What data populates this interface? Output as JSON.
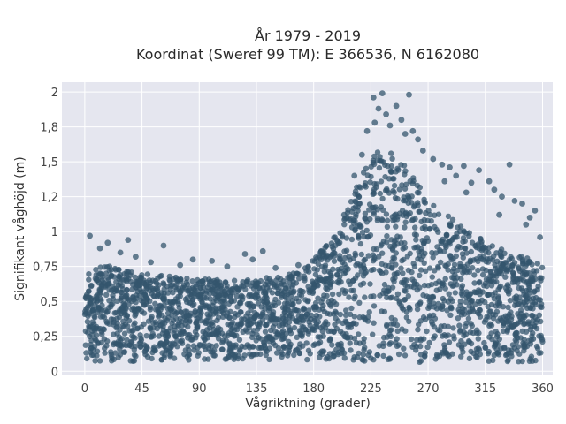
{
  "chart_data": {
    "type": "scatter",
    "title_lines": [
      "År 1979 - 2019",
      "Koordinat (Sweref 99 TM): E 366536, N 6162080"
    ],
    "xlabel": "Vågriktning (grader)",
    "ylabel": "Signifikant våghöjd (m)",
    "xlim": [
      -18,
      368
    ],
    "ylim": [
      -0.03,
      2.07
    ],
    "xticks": [
      0,
      45,
      90,
      135,
      180,
      225,
      270,
      315,
      360
    ],
    "xtick_labels": [
      "0",
      "45",
      "90",
      "135",
      "180",
      "225",
      "270",
      "315",
      "360"
    ],
    "yticks": [
      0,
      0.25,
      0.5,
      0.75,
      1,
      1.25,
      1.5,
      1.75,
      2
    ],
    "ytick_labels": [
      "0",
      "0,25",
      "0,5",
      "0,75",
      "1",
      "1,2",
      "1,5",
      "1,8",
      "2"
    ],
    "grid": true,
    "colors": {
      "marker": "#34566e",
      "plot_bg": "#e5e6ef",
      "grid": "#ffffff"
    },
    "envelope": [
      {
        "x": 0,
        "ymin": 0.07,
        "ymax": 0.72
      },
      {
        "x": 20,
        "ymin": 0.07,
        "ymax": 0.76
      },
      {
        "x": 45,
        "ymin": 0.07,
        "ymax": 0.7
      },
      {
        "x": 90,
        "ymin": 0.08,
        "ymax": 0.66
      },
      {
        "x": 135,
        "ymin": 0.08,
        "ymax": 0.66
      },
      {
        "x": 160,
        "ymin": 0.08,
        "ymax": 0.69
      },
      {
        "x": 180,
        "ymin": 0.08,
        "ymax": 0.8
      },
      {
        "x": 200,
        "ymin": 0.08,
        "ymax": 1.0
      },
      {
        "x": 215,
        "ymin": 0.07,
        "ymax": 1.38
      },
      {
        "x": 232,
        "ymin": 0.07,
        "ymax": 1.6
      },
      {
        "x": 250,
        "ymin": 0.07,
        "ymax": 1.52
      },
      {
        "x": 270,
        "ymin": 0.06,
        "ymax": 1.22
      },
      {
        "x": 295,
        "ymin": 0.06,
        "ymax": 1.05
      },
      {
        "x": 320,
        "ymin": 0.06,
        "ymax": 0.9
      },
      {
        "x": 340,
        "ymin": 0.06,
        "ymax": 0.84
      },
      {
        "x": 360,
        "ymin": 0.07,
        "ymax": 0.78
      }
    ],
    "outliers": [
      {
        "x": 4,
        "y": 0.97
      },
      {
        "x": 12,
        "y": 0.88
      },
      {
        "x": 18,
        "y": 0.92
      },
      {
        "x": 28,
        "y": 0.85
      },
      {
        "x": 34,
        "y": 0.94
      },
      {
        "x": 40,
        "y": 0.82
      },
      {
        "x": 52,
        "y": 0.78
      },
      {
        "x": 62,
        "y": 0.9
      },
      {
        "x": 75,
        "y": 0.76
      },
      {
        "x": 85,
        "y": 0.8
      },
      {
        "x": 100,
        "y": 0.79
      },
      {
        "x": 112,
        "y": 0.75
      },
      {
        "x": 126,
        "y": 0.84
      },
      {
        "x": 132,
        "y": 0.8
      },
      {
        "x": 140,
        "y": 0.86
      },
      {
        "x": 150,
        "y": 0.74
      },
      {
        "x": 168,
        "y": 0.76
      },
      {
        "x": 186,
        "y": 0.86
      },
      {
        "x": 204,
        "y": 1.12
      },
      {
        "x": 212,
        "y": 1.4
      },
      {
        "x": 218,
        "y": 1.55
      },
      {
        "x": 222,
        "y": 1.72
      },
      {
        "x": 227,
        "y": 1.96
      },
      {
        "x": 231,
        "y": 1.88
      },
      {
        "x": 234,
        "y": 1.99
      },
      {
        "x": 237,
        "y": 1.84
      },
      {
        "x": 240,
        "y": 1.76
      },
      {
        "x": 245,
        "y": 1.9
      },
      {
        "x": 249,
        "y": 1.8
      },
      {
        "x": 255,
        "y": 1.98
      },
      {
        "x": 258,
        "y": 1.72
      },
      {
        "x": 262,
        "y": 1.66
      },
      {
        "x": 266,
        "y": 1.58
      },
      {
        "x": 274,
        "y": 1.52
      },
      {
        "x": 281,
        "y": 1.48
      },
      {
        "x": 287,
        "y": 1.46
      },
      {
        "x": 292,
        "y": 1.4
      },
      {
        "x": 298,
        "y": 1.47
      },
      {
        "x": 304,
        "y": 1.35
      },
      {
        "x": 310,
        "y": 1.44
      },
      {
        "x": 318,
        "y": 1.36
      },
      {
        "x": 322,
        "y": 1.3
      },
      {
        "x": 328,
        "y": 1.25
      },
      {
        "x": 334,
        "y": 1.48
      },
      {
        "x": 338,
        "y": 1.22
      },
      {
        "x": 344,
        "y": 1.2
      },
      {
        "x": 350,
        "y": 1.1
      },
      {
        "x": 354,
        "y": 1.15
      },
      {
        "x": 358,
        "y": 0.96
      },
      {
        "x": 347,
        "y": 1.05
      },
      {
        "x": 326,
        "y": 1.12
      },
      {
        "x": 300,
        "y": 1.28
      },
      {
        "x": 283,
        "y": 1.36
      },
      {
        "x": 252,
        "y": 1.7
      },
      {
        "x": 228,
        "y": 1.78
      }
    ]
  }
}
